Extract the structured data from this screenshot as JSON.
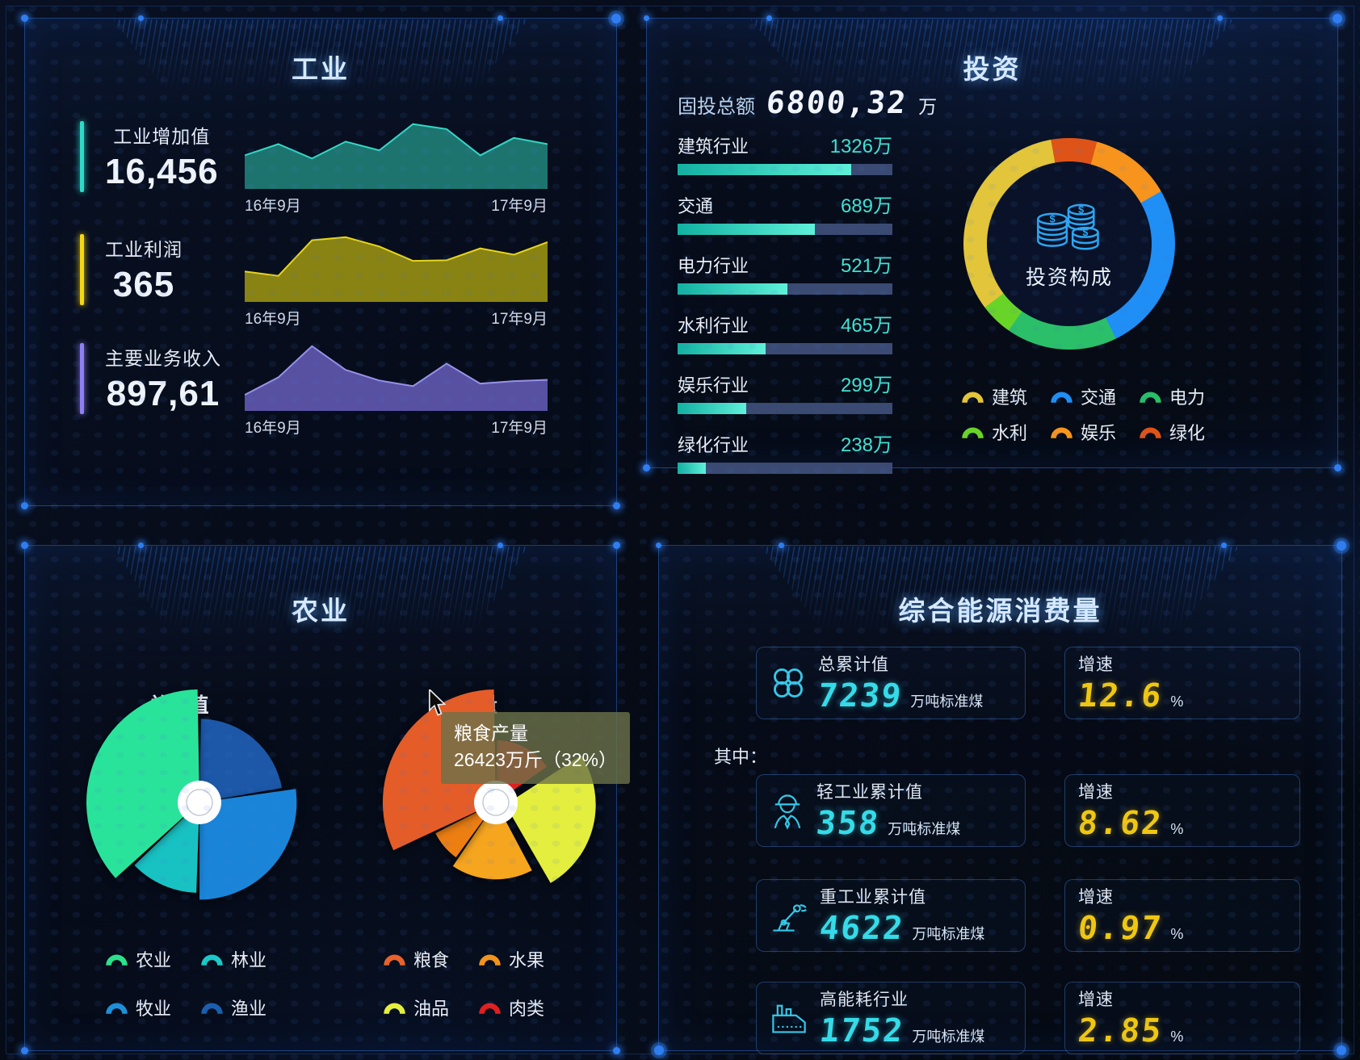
{
  "panels": {
    "industry": {
      "title": "工业"
    },
    "invest": {
      "title": "投资",
      "total_label": "固投总额",
      "total_value": "6800,32",
      "total_unit": "万",
      "donut_center_icon": "coins-icon"
    },
    "agri": {
      "title": "农业"
    },
    "energy": {
      "title": "综合能源消费量",
      "among_label": "其中：",
      "unit": "万吨标准煤",
      "growth_label": "增速",
      "growth_unit": "%",
      "rows": [
        {
          "icon": "clover-icon",
          "label": "总累计值",
          "value": "7239",
          "growth": "12.6"
        },
        {
          "icon": "worker-icon",
          "label": "轻工业累计值",
          "value": "358",
          "growth": "8.62"
        },
        {
          "icon": "robot-arm-icon",
          "label": "重工业累计值",
          "value": "4622",
          "growth": "0.97"
        },
        {
          "icon": "factory-icon",
          "label": "高能耗行业",
          "value": "1752",
          "growth": "2.85"
        }
      ]
    }
  },
  "chart_data": [
    {
      "id": "industry-areas",
      "type": "area",
      "x_range": [
        "16年9月",
        "17年9月"
      ],
      "series": [
        {
          "name": "工业增加值",
          "metric_value": "16,456",
          "accent": "#2fd9c7",
          "color_fill": "#1f7a74",
          "color_line": "#35d6c3",
          "points": [
            0.5,
            0.68,
            0.45,
            0.72,
            0.58,
            1.0,
            0.92,
            0.5,
            0.78,
            0.68
          ]
        },
        {
          "name": "工业利润",
          "metric_value": "365",
          "accent": "#f5d713",
          "color_fill": "#8f8a12",
          "color_line": "#e8d51a",
          "points": [
            0.45,
            0.38,
            0.95,
            1.0,
            0.85,
            0.62,
            0.63,
            0.82,
            0.72,
            0.92
          ]
        },
        {
          "name": "主要业务收入",
          "metric_value": "897,61",
          "accent": "#8f7ff2",
          "color_fill": "#5d55aa",
          "color_line": "#9a92e8",
          "points": [
            0.22,
            0.5,
            1.0,
            0.62,
            0.45,
            0.36,
            0.72,
            0.4,
            0.44,
            0.46
          ]
        }
      ]
    },
    {
      "id": "invest-bars",
      "type": "bar",
      "bars": [
        {
          "label": "建筑行业",
          "value": "1326万",
          "pct": 81
        },
        {
          "label": "交通",
          "value": "689万",
          "pct": 64
        },
        {
          "label": "电力行业",
          "value": "521万",
          "pct": 51
        },
        {
          "label": "水利行业",
          "value": "465万",
          "pct": 41
        },
        {
          "label": "娱乐行业",
          "value": "299万",
          "pct": 32
        },
        {
          "label": "绿化行业",
          "value": "238万",
          "pct": 13
        }
      ]
    },
    {
      "id": "invest-donut",
      "type": "pie",
      "center_label": "投资构成",
      "start_deg": -10,
      "segments": [
        {
          "name": "绿化",
          "pct": 7,
          "color": "#de5318"
        },
        {
          "name": "娱乐",
          "pct": 12.5,
          "color": "#f7941e"
        },
        {
          "name": "交通",
          "pct": 26,
          "color": "#1f8ef5"
        },
        {
          "name": "电力",
          "pct": 17,
          "color": "#2abf68"
        },
        {
          "name": "水利",
          "pct": 5,
          "color": "#68d428"
        },
        {
          "name": "建筑",
          "pct": 32.5,
          "color": "#e2c53a"
        }
      ],
      "legend": [
        {
          "label": "建筑",
          "color": "#e2c53a"
        },
        {
          "label": "交通",
          "color": "#1f8ef5"
        },
        {
          "label": "电力",
          "color": "#2abf68"
        },
        {
          "label": "水利",
          "color": "#68d428"
        },
        {
          "label": "娱乐",
          "color": "#f7941e"
        },
        {
          "label": "绿化",
          "color": "#de5318"
        }
      ]
    },
    {
      "id": "agri-total-value",
      "type": "pie",
      "title": "总产值",
      "wedges": [
        {
          "name": "渔业",
          "color": "#1c57a8",
          "start": 1,
          "end": 80,
          "r": 0.74
        },
        {
          "name": "牧业",
          "color": "#1a85d8",
          "start": 82,
          "end": 180,
          "r": 0.86
        },
        {
          "name": "林业",
          "color": "#18c2c2",
          "start": 182,
          "end": 226,
          "r": 0.8
        },
        {
          "name": "农业",
          "color": "#2ae39b",
          "start": 228,
          "end": 359,
          "r": 1.0
        }
      ],
      "legend": [
        {
          "label": "农业",
          "color": "#2ee08c"
        },
        {
          "label": "林业",
          "color": "#1cc8c8"
        },
        {
          "label": "牧业",
          "color": "#1e90d8"
        },
        {
          "label": "渔业",
          "color": "#1a5fae"
        }
      ]
    },
    {
      "id": "agri-output",
      "type": "pie",
      "title": "产量",
      "tooltip": {
        "line1": "粮食产量",
        "line2": "26423万斤（32%）"
      },
      "wedges": [
        {
          "name": "肉类",
          "color": "#e02020",
          "start": 1,
          "end": 55,
          "r": 0.55
        },
        {
          "name": "油品",
          "color": "#e3ee3e",
          "start": 57,
          "end": 150,
          "r": 0.8,
          "explode": 12
        },
        {
          "name": "水果",
          "color": "#f6a51f",
          "start": 152,
          "end": 214,
          "r": 0.68
        },
        {
          "name": "水果",
          "color": "#ec7e12",
          "start": 216,
          "end": 243,
          "r": 0.6
        },
        {
          "name": "粮食",
          "color": "#e45c28",
          "start": 245,
          "end": 359,
          "r": 1.0
        }
      ],
      "legend": [
        {
          "label": "粮食",
          "color": "#e8622c"
        },
        {
          "label": "水果",
          "color": "#f0941e"
        },
        {
          "label": "油品",
          "color": "#e4ef3c"
        },
        {
          "label": "肉类",
          "color": "#e01f1f"
        }
      ]
    }
  ]
}
